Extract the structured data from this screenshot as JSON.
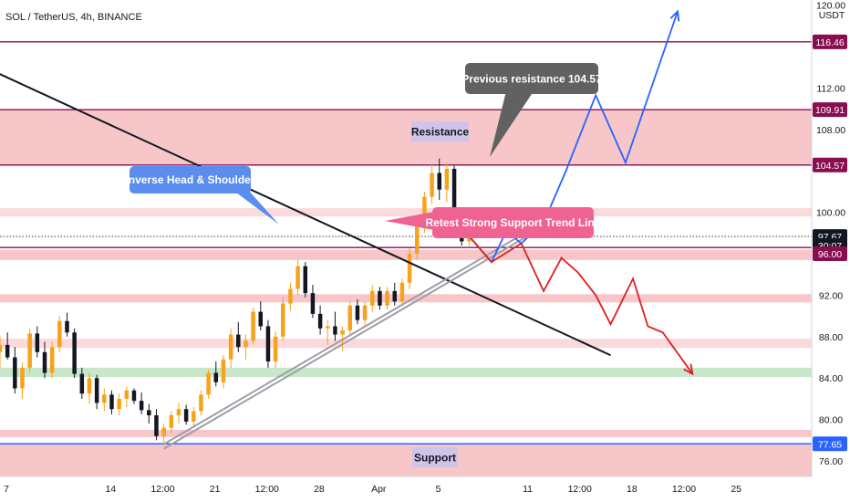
{
  "chart_data": {
    "type": "candlestick",
    "title": "SOL / TetherUS, 4h, BINANCE",
    "currency": "USDT",
    "y_range": [
      74.5,
      120.5
    ],
    "y_ticks": [
      "120.00",
      "112.00",
      "108.00",
      "100.00",
      "92.00",
      "88.00",
      "84.00",
      "80.00",
      "76.00"
    ],
    "x_ticks": [
      "7",
      "14",
      "12:00",
      "21",
      "12:00",
      "28",
      "Apr",
      "5",
      "11",
      "12:00",
      "18",
      "12:00",
      "25"
    ],
    "x_tick_values": [
      0,
      7,
      10.5,
      14,
      17.5,
      21,
      25,
      29,
      35,
      38.5,
      42,
      45.5,
      49
    ],
    "x_range": [
      0,
      54.5
    ],
    "price_badges": [
      {
        "label": "116.46",
        "value": 116.46,
        "color": "#880e4f"
      },
      {
        "label": "109.91",
        "value": 109.91,
        "color": "#880e4f"
      },
      {
        "label": "104.57",
        "value": 104.57,
        "color": "#880e4f"
      },
      {
        "label": "97.67",
        "value": 97.67,
        "color": "#131722"
      },
      {
        "label": "30:07",
        "value": 96.8,
        "color": "#131722"
      },
      {
        "label": "96.00",
        "value": 96.0,
        "color": "#880e4f"
      },
      {
        "label": "77.65",
        "value": 77.65,
        "color": "#2962ff"
      }
    ],
    "zones": [
      {
        "from": 104.57,
        "to": 109.91,
        "color": "#f7c6c9"
      },
      {
        "from": 99.6,
        "to": 100.4,
        "color": "#fbdadc"
      },
      {
        "from": 95.4,
        "to": 96.4,
        "color": "#f7c6c9"
      },
      {
        "from": 91.3,
        "to": 92.1,
        "color": "#f7c6c9"
      },
      {
        "from": 86.9,
        "to": 87.8,
        "color": "#fbdadc"
      },
      {
        "from": 84.1,
        "to": 85.0,
        "color": "#c8e6c9"
      },
      {
        "from": 78.3,
        "to": 79.0,
        "color": "#f7c6c9"
      },
      {
        "from": 74.5,
        "to": 77.65,
        "color": "#f7c6c9"
      }
    ],
    "levels": [
      {
        "value": 116.46,
        "color": "#880e4f"
      },
      {
        "value": 109.91,
        "color": "#880e4f"
      },
      {
        "value": 104.57,
        "color": "#880e4f"
      },
      {
        "value": 96.6,
        "color": "#880e4f"
      },
      {
        "value": 77.65,
        "color": "#2962ff"
      }
    ],
    "current_price": 97.67,
    "candles": [
      [
        0,
        86.5,
        88.0,
        85.0,
        87.2
      ],
      [
        0.5,
        87.2,
        88.4,
        85.8,
        86.0
      ],
      [
        1,
        86.0,
        87.0,
        82.5,
        83.0
      ],
      [
        1.5,
        83.0,
        85.5,
        82.0,
        85.0
      ],
      [
        2,
        85.0,
        88.8,
        84.5,
        88.3
      ],
      [
        2.5,
        88.3,
        89.0,
        86.0,
        86.5
      ],
      [
        3,
        86.5,
        87.5,
        84.0,
        84.5
      ],
      [
        3.5,
        84.5,
        87.5,
        84.0,
        87.0
      ],
      [
        4,
        87.0,
        90.0,
        86.5,
        89.5
      ],
      [
        4.5,
        89.5,
        90.3,
        88.0,
        88.4
      ],
      [
        5,
        88.4,
        88.8,
        84.0,
        84.4
      ],
      [
        5.5,
        84.4,
        85.0,
        82.0,
        82.5
      ],
      [
        6,
        82.5,
        84.5,
        81.5,
        84.0
      ],
      [
        6.5,
        84.0,
        84.3,
        81.0,
        81.6
      ],
      [
        7,
        81.6,
        83.0,
        80.8,
        82.4
      ],
      [
        7.5,
        82.4,
        82.8,
        80.5,
        81.0
      ],
      [
        8,
        81.0,
        82.5,
        80.4,
        82.0
      ],
      [
        8.5,
        82.0,
        83.2,
        81.2,
        82.8
      ],
      [
        9,
        82.8,
        83.0,
        81.5,
        81.8
      ],
      [
        9.5,
        81.8,
        82.6,
        80.5,
        80.9
      ],
      [
        10,
        80.9,
        81.5,
        79.6,
        80.4
      ],
      [
        10.5,
        80.4,
        81.0,
        78.0,
        78.4
      ],
      [
        11,
        78.4,
        79.6,
        77.5,
        79.2
      ],
      [
        11.5,
        79.2,
        80.8,
        78.6,
        80.4
      ],
      [
        12,
        80.4,
        81.6,
        79.6,
        81.0
      ],
      [
        12.5,
        81.0,
        81.4,
        79.5,
        79.8
      ],
      [
        13,
        79.8,
        81.2,
        79.2,
        80.8
      ],
      [
        13.5,
        80.8,
        82.8,
        80.4,
        82.4
      ],
      [
        14,
        82.4,
        84.8,
        82.0,
        84.5
      ],
      [
        14.5,
        84.5,
        85.6,
        83.2,
        83.6
      ],
      [
        15,
        83.6,
        86.2,
        83.0,
        85.8
      ],
      [
        15.5,
        85.8,
        88.8,
        85.0,
        88.2
      ],
      [
        16,
        88.2,
        89.4,
        86.5,
        87.0
      ],
      [
        16.5,
        87.0,
        88.2,
        85.8,
        87.6
      ],
      [
        17,
        87.6,
        90.8,
        87.2,
        90.4
      ],
      [
        17.5,
        90.4,
        91.4,
        88.6,
        89.0
      ],
      [
        18,
        89.0,
        89.6,
        85.0,
        85.6
      ],
      [
        18.5,
        85.6,
        88.5,
        85.0,
        88.0
      ],
      [
        19,
        88.0,
        91.8,
        87.6,
        91.2
      ],
      [
        19.5,
        91.2,
        93.2,
        90.5,
        92.6
      ],
      [
        20,
        92.6,
        95.4,
        92.0,
        94.8
      ],
      [
        20.5,
        94.8,
        95.2,
        91.8,
        92.2
      ],
      [
        21,
        92.2,
        93.0,
        89.8,
        90.2
      ],
      [
        21.5,
        90.2,
        91.0,
        88.2,
        88.8
      ],
      [
        22,
        88.8,
        89.6,
        87.2,
        89.0
      ],
      [
        22.5,
        89.0,
        90.4,
        87.6,
        88.2
      ],
      [
        23,
        88.2,
        89.0,
        86.6,
        88.6
      ],
      [
        23.5,
        88.6,
        91.4,
        88.2,
        91.0
      ],
      [
        24,
        91.0,
        91.6,
        89.2,
        89.6
      ],
      [
        24.5,
        89.6,
        91.4,
        89.0,
        91.0
      ],
      [
        25,
        91.0,
        93.0,
        90.4,
        92.4
      ],
      [
        25.5,
        92.4,
        92.8,
        90.6,
        91.0
      ],
      [
        26,
        91.0,
        92.8,
        90.6,
        92.4
      ],
      [
        26.5,
        92.4,
        93.2,
        91.0,
        91.4
      ],
      [
        27,
        91.4,
        93.6,
        91.0,
        93.2
      ],
      [
        27.5,
        93.2,
        96.5,
        92.6,
        96.0
      ],
      [
        28,
        96.0,
        99.5,
        95.4,
        99.0
      ],
      [
        28.5,
        99.0,
        102.0,
        98.0,
        101.5
      ],
      [
        29,
        101.5,
        104.6,
        100.8,
        103.8
      ],
      [
        29.5,
        103.8,
        105.2,
        101.2,
        102.2
      ],
      [
        30,
        102.2,
        104.8,
        101.0,
        104.2
      ],
      [
        30.5,
        104.2,
        104.5,
        99.0,
        99.4
      ],
      [
        31,
        99.4,
        99.8,
        96.8,
        97.2
      ],
      [
        31.5,
        97.2,
        98.8,
        96.6,
        97.67
      ]
    ],
    "annotations": [
      {
        "text": "Inverse Head & Shoulder",
        "color": "#5b8def"
      },
      {
        "text": "Previous resistance  104.57",
        "color": "#616161"
      },
      {
        "text": "Resistance",
        "color": "#d1c4e9"
      },
      {
        "text": "Retest Strong Support Trend Line",
        "color": "#f06292"
      },
      {
        "text": "Support",
        "color": "#d1c4e9"
      }
    ],
    "trend_lines": [
      {
        "color": "#131722",
        "points": [
          [
            -1,
            114.0
          ],
          [
            41,
            86.2
          ]
        ]
      },
      {
        "color": "#9e9ea8",
        "points": [
          [
            11,
            77.4
          ],
          [
            38,
            100.1
          ]
        ]
      }
    ],
    "projections": [
      {
        "color": "#2962ff",
        "points": [
          [
            31.5,
            97.7
          ],
          [
            33,
            95.2
          ],
          [
            34,
            98.2
          ],
          [
            35,
            97.0
          ],
          [
            36.5,
            99.0
          ],
          [
            38,
            104.0
          ],
          [
            40,
            111.3
          ],
          [
            42,
            104.8
          ],
          [
            45.5,
            119.4
          ]
        ]
      },
      {
        "color": "#e01e1e",
        "points": [
          [
            31.5,
            97.7
          ],
          [
            33,
            95.2
          ],
          [
            35,
            97.0
          ],
          [
            36.5,
            92.4
          ],
          [
            37.7,
            95.6
          ],
          [
            38.8,
            94.2
          ],
          [
            40,
            92.0
          ],
          [
            41,
            89.2
          ],
          [
            42.5,
            93.6
          ],
          [
            43.5,
            89.0
          ],
          [
            44.5,
            88.4
          ],
          [
            46.5,
            84.4
          ]
        ]
      }
    ]
  }
}
